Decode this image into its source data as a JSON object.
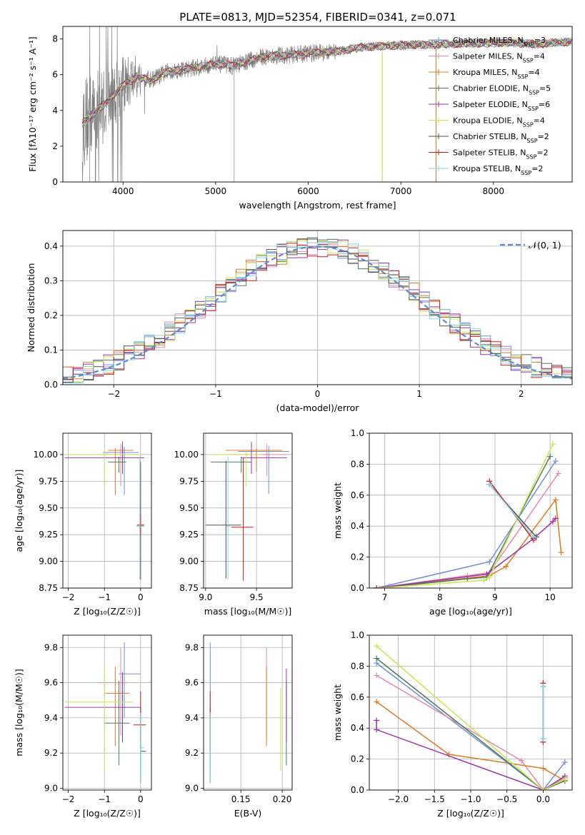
{
  "figure_title": "PLATE=0813, MJD=52354, FIBERID=0341, z=0.071",
  "colors": {
    "Chabrier MILES": "#6f8fdc",
    "Salpeter MILES": "#e088b8",
    "Kroupa MILES": "#e07a20",
    "Chabrier ELODIE": "#4f7a5a",
    "Salpeter ELODIE": "#9a35a8",
    "Kroupa ELODIE": "#c8e650",
    "Chabrier STELIB": "#505050",
    "Salpeter STELIB": "#c81e1e",
    "Kroupa STELIB": "#80d8e0",
    "data": "#808080",
    "gauss": "#5b8ad6"
  },
  "chart_data": [
    {
      "id": "spectrum",
      "type": "line",
      "title": "PLATE=0813, MJD=52354, FIBERID=0341, z=0.071",
      "xlabel": "wavelength [Angstrom, rest frame]",
      "ylabel": "Flux [fλ10⁻¹⁷ erg cm⁻² s⁻¹ A⁻¹]",
      "xlim": [
        3350,
        8850
      ],
      "ylim": [
        0,
        8.7
      ],
      "xticks": [
        4000,
        5000,
        6000,
        7000,
        8000
      ],
      "yticks": [
        0,
        2,
        4,
        6,
        8
      ],
      "legend_position": "right",
      "legend": [
        "Chabrier MILES, N_SSP=3",
        "Salpeter MILES, N_SSP=4",
        "Kroupa MILES, N_SSP=4",
        "Chabrier ELODIE, N_SSP=5",
        "Salpeter ELODIE, N_SSP=6",
        "Kroupa ELODIE, N_SSP=4",
        "Chabrier STELIB, N_SSP=2",
        "Salpeter STELIB, N_SSP=2",
        "Kroupa STELIB, N_SSP=2"
      ],
      "continuum": [
        [
          3560,
          3.3
        ],
        [
          3700,
          3.9
        ],
        [
          3850,
          4.6
        ],
        [
          4000,
          5.4
        ],
        [
          4150,
          5.9
        ],
        [
          4300,
          5.7
        ],
        [
          4500,
          6.2
        ],
        [
          4800,
          6.4
        ],
        [
          5000,
          6.6
        ],
        [
          5200,
          6.5
        ],
        [
          5500,
          7.0
        ],
        [
          5800,
          7.1
        ],
        [
          6000,
          7.2
        ],
        [
          6300,
          7.3
        ],
        [
          6600,
          7.55
        ],
        [
          7000,
          7.65
        ],
        [
          7400,
          7.7
        ],
        [
          7800,
          7.75
        ],
        [
          8200,
          7.8
        ],
        [
          8500,
          7.7
        ],
        [
          8850,
          7.85
        ]
      ]
    },
    {
      "id": "residuals",
      "type": "bar",
      "xlabel": "(data-model)/error",
      "ylabel": "Normed distribution",
      "xlim": [
        -2.5,
        2.5
      ],
      "ylim": [
        0,
        0.445
      ],
      "xticks": [
        -2,
        -1,
        0,
        1,
        2
      ],
      "yticks": [
        0.0,
        0.1,
        0.2,
        0.3,
        0.4
      ],
      "legend": [
        "𝒩(0, 1)"
      ],
      "legend_position": "top-right",
      "grid": true
    },
    {
      "id": "age-Z",
      "type": "scatter",
      "xlabel": "Z [log₁₀(Z/Z☉)]",
      "ylabel": "age  [log₁₀(age/yr)]",
      "xlim": [
        -2.15,
        0.3
      ],
      "ylim": [
        8.75,
        10.2
      ],
      "xticks": [
        -2,
        -1,
        0
      ],
      "yticks": [
        8.75,
        9.0,
        9.25,
        9.5,
        9.75,
        10.0
      ],
      "grid": true,
      "points": [
        {
          "model": "Chabrier MILES",
          "x": -0.45,
          "y": 10.02,
          "xerr": [
            0.6,
            0.4
          ],
          "yerr": [
            0.4,
            0.05
          ]
        },
        {
          "model": "Salpeter MILES",
          "x": -0.55,
          "y": 10.0,
          "xerr": [
            0.55,
            0.5
          ],
          "yerr": [
            0.3,
            0.1
          ]
        },
        {
          "model": "Kroupa MILES",
          "x": -0.7,
          "y": 10.04,
          "xerr": [
            0.2,
            0.5
          ],
          "yerr": [
            0.42,
            0.02
          ]
        },
        {
          "model": "Chabrier ELODIE",
          "x": -0.6,
          "y": 9.93,
          "xerr": [
            0.3,
            0.2
          ],
          "yerr": [
            0.1,
            0.05
          ]
        },
        {
          "model": "Salpeter ELODIE",
          "x": -0.5,
          "y": 9.97,
          "xerr": [
            1.6,
            0.6
          ],
          "yerr": [
            0.15,
            0.15
          ]
        },
        {
          "model": "Kroupa ELODIE",
          "x": -1.0,
          "y": 10.0,
          "xerr": [
            1.1,
            1.0
          ],
          "yerr": [
            0.3,
            0.05
          ]
        },
        {
          "model": "Chabrier STELIB",
          "x": 0.0,
          "y": 9.33,
          "xerr": [
            0.1,
            0.1
          ],
          "yerr": [
            0.5,
            0.6
          ]
        },
        {
          "model": "Salpeter STELIB",
          "x": 0.0,
          "y": 9.34,
          "xerr": [
            0.1,
            0.1
          ],
          "yerr": [
            0.1,
            0.1
          ]
        },
        {
          "model": "Kroupa STELIB",
          "x": -0.02,
          "y": 9.33,
          "xerr": [
            0.1,
            0.12
          ],
          "yerr": [
            0.5,
            0.65
          ]
        }
      ]
    },
    {
      "id": "age-mass",
      "type": "scatter",
      "xlabel": "mass [log₁₀(M/M☉)]",
      "xlim": [
        8.98,
        9.85
      ],
      "ylim": [
        8.75,
        10.2
      ],
      "xticks": [
        9.0,
        9.5
      ],
      "yticks": [
        8.75,
        9.0,
        9.25,
        9.5,
        9.75,
        10.0
      ],
      "grid": true,
      "points": [
        {
          "model": "Chabrier MILES",
          "x": 9.62,
          "y": 10.03,
          "xerr": [
            0.3,
            0.2
          ],
          "yerr": [
            0.4,
            0.05
          ]
        },
        {
          "model": "Salpeter MILES",
          "x": 9.6,
          "y": 10.0,
          "xerr": [
            0.4,
            0.2
          ],
          "yerr": [
            0.2,
            0.1
          ]
        },
        {
          "model": "Kroupa MILES",
          "x": 9.5,
          "y": 10.04,
          "xerr": [
            0.3,
            0.25
          ],
          "yerr": [
            0.2,
            0.02
          ]
        },
        {
          "model": "Chabrier ELODIE",
          "x": 9.35,
          "y": 9.93,
          "xerr": [
            0.3,
            0.1
          ],
          "yerr": [
            0.1,
            0.05
          ]
        },
        {
          "model": "Salpeter ELODIE",
          "x": 9.45,
          "y": 9.97,
          "xerr": [
            0.1,
            0.35
          ],
          "yerr": [
            0.15,
            0.15
          ]
        },
        {
          "model": "Kroupa ELODIE",
          "x": 9.4,
          "y": 10.0,
          "xerr": [
            0.35,
            0.15
          ],
          "yerr": [
            0.3,
            0.05
          ]
        },
        {
          "model": "Chabrier STELIB",
          "x": 9.2,
          "y": 9.34,
          "xerr": [
            0.2,
            0.15
          ],
          "yerr": [
            0.5,
            0.6
          ]
        },
        {
          "model": "Salpeter STELIB",
          "x": 9.37,
          "y": 9.32,
          "xerr": [
            0.12,
            0.1
          ],
          "yerr": [
            0.5,
            0.65
          ]
        },
        {
          "model": "Kroupa STELIB",
          "x": 9.22,
          "y": 9.33,
          "xerr": [
            0.02,
            0.02
          ],
          "yerr": [
            0.5,
            0.65
          ]
        }
      ]
    },
    {
      "id": "massweight-age",
      "type": "line",
      "xlabel": "age  [log₁₀(age/yr)]",
      "ylabel": "mass weight",
      "xlim": [
        6.72,
        10.4
      ],
      "ylim": [
        0,
        1.0
      ],
      "xticks": [
        7,
        8,
        9,
        10
      ],
      "yticks": [
        0.0,
        0.2,
        0.4,
        0.6,
        0.8,
        1.0
      ],
      "grid": true,
      "series": [
        {
          "model": "Chabrier MILES",
          "points": [
            [
              6.85,
              0.0
            ],
            [
              8.9,
              0.17
            ],
            [
              10.1,
              0.82
            ]
          ]
        },
        {
          "model": "Salpeter MILES",
          "points": [
            [
              6.85,
              0.0
            ],
            [
              8.5,
              0.08
            ],
            [
              8.9,
              0.1
            ],
            [
              10.15,
              0.74
            ]
          ]
        },
        {
          "model": "Kroupa MILES",
          "points": [
            [
              6.85,
              0.0
            ],
            [
              8.9,
              0.08
            ],
            [
              9.2,
              0.14
            ],
            [
              10.1,
              0.57
            ],
            [
              10.2,
              0.23
            ]
          ]
        },
        {
          "model": "Chabrier ELODIE",
          "points": [
            [
              6.9,
              0.0
            ],
            [
              8.5,
              0.06
            ],
            [
              8.85,
              0.07
            ],
            [
              10.0,
              0.85
            ]
          ]
        },
        {
          "model": "Salpeter ELODIE",
          "points": [
            [
              6.85,
              0.0
            ],
            [
              8.85,
              0.09
            ],
            [
              9.7,
              0.32
            ],
            [
              10.05,
              0.43
            ],
            [
              10.1,
              0.45
            ]
          ]
        },
        {
          "model": "Kroupa ELODIE",
          "points": [
            [
              6.9,
              0.0
            ],
            [
              8.8,
              0.05
            ],
            [
              8.9,
              0.07
            ],
            [
              10.05,
              0.93
            ]
          ]
        },
        {
          "model": "Chabrier STELIB",
          "points": [
            [
              8.9,
              0.67
            ],
            [
              9.75,
              0.33
            ]
          ]
        },
        {
          "model": "Salpeter STELIB",
          "points": [
            [
              8.9,
              0.69
            ],
            [
              9.7,
              0.31
            ]
          ]
        },
        {
          "model": "Kroupa STELIB",
          "points": [
            [
              8.9,
              0.67
            ],
            [
              9.7,
              0.33
            ]
          ]
        }
      ]
    },
    {
      "id": "mass-Z",
      "type": "scatter",
      "xlabel": "Z [log₁₀(Z/Z☉)]",
      "ylabel": "mass [log₁₀(M/M☉)]",
      "xlim": [
        -2.15,
        0.3
      ],
      "ylim": [
        8.99,
        9.87
      ],
      "xticks": [
        -2,
        -1,
        0
      ],
      "yticks": [
        9.0,
        9.2,
        9.4,
        9.6,
        9.8
      ],
      "grid": true,
      "points": [
        {
          "model": "Chabrier MILES",
          "x": -0.45,
          "y": 9.65,
          "xerr": [
            0.15,
            0.45
          ],
          "yerr": [
            0.25,
            0.18
          ]
        },
        {
          "model": "Salpeter MILES",
          "x": -0.55,
          "y": 9.6,
          "xerr": [
            0.6,
            0.2
          ],
          "yerr": [
            0.3,
            0.2
          ]
        },
        {
          "model": "Kroupa MILES",
          "x": -0.7,
          "y": 9.54,
          "xerr": [
            0.3,
            0.4
          ],
          "yerr": [
            0.3,
            0.15
          ]
        },
        {
          "model": "Chabrier ELODIE",
          "x": -0.6,
          "y": 9.37,
          "xerr": [
            0.4,
            0.3
          ],
          "yerr": [
            0.24,
            0.24
          ]
        },
        {
          "model": "Salpeter ELODIE",
          "x": -0.5,
          "y": 9.46,
          "xerr": [
            1.6,
            0.5
          ],
          "yerr": [
            0.2,
            0.2
          ]
        },
        {
          "model": "Kroupa ELODIE",
          "x": -1.0,
          "y": 9.49,
          "xerr": [
            1.1,
            0.8
          ],
          "yerr": [
            0.39,
            0.2
          ]
        },
        {
          "model": "Chabrier STELIB",
          "x": 0.0,
          "y": 9.21,
          "xerr": [
            0.0,
            0.15
          ],
          "yerr": [
            0.18,
            0.25
          ]
        },
        {
          "model": "Salpeter STELIB",
          "x": 0.0,
          "y": 9.36,
          "xerr": [
            0.2,
            0.15
          ],
          "yerr": [
            0.14,
            0.19
          ]
        },
        {
          "model": "Kroupa STELIB",
          "x": 0.0,
          "y": 9.23,
          "xerr": [
            0.02,
            0.1
          ],
          "yerr": [
            0.2,
            0.2
          ]
        }
      ]
    },
    {
      "id": "mass-EBV",
      "type": "scatter",
      "xlabel": "E(B-V)",
      "xlim": [
        0.105,
        0.212
      ],
      "ylim": [
        8.99,
        9.87
      ],
      "xticks": [
        0.15,
        0.2
      ],
      "yticks": [
        9.0,
        9.2,
        9.4,
        9.6,
        9.8
      ],
      "grid": true,
      "points": [
        {
          "model": "Chabrier MILES",
          "x": 0.113,
          "y": 9.65,
          "yerr": [
            0.25,
            0.18
          ]
        },
        {
          "model": "Salpeter MILES",
          "x": 0.181,
          "y": 9.6,
          "yerr": [
            0.3,
            0.2
          ]
        },
        {
          "model": "Kroupa MILES",
          "x": 0.181,
          "y": 9.54,
          "yerr": [
            0.3,
            0.15
          ]
        },
        {
          "model": "Chabrier ELODIE",
          "x": 0.205,
          "y": 9.37,
          "yerr": [
            0.24,
            0.24
          ]
        },
        {
          "model": "Salpeter ELODIE",
          "x": 0.205,
          "y": 9.46,
          "yerr": [
            0.2,
            0.22
          ]
        },
        {
          "model": "Kroupa ELODIE",
          "x": 0.198,
          "y": 9.49,
          "yerr": [
            0.39,
            0.08
          ]
        },
        {
          "model": "Chabrier STELIB",
          "x": 0.113,
          "y": 9.21,
          "yerr": [
            0.18,
            0.25
          ]
        },
        {
          "model": "Salpeter STELIB",
          "x": 0.113,
          "y": 9.36,
          "yerr": [
            0.14,
            0.19
          ]
        },
        {
          "model": "Kroupa STELIB",
          "x": 0.113,
          "y": 9.23,
          "yerr": [
            0.2,
            0.2
          ]
        }
      ]
    },
    {
      "id": "massweight-Z",
      "type": "line",
      "xlabel": "Z [log₁₀(Z/Z☉)]",
      "ylabel": "mass weight",
      "xlim": [
        -2.4,
        0.4
      ],
      "ylim": [
        0,
        1.0
      ],
      "xticks": [
        -2.0,
        -1.5,
        -1.0,
        -0.5,
        0.0
      ],
      "yticks": [
        0.0,
        0.2,
        0.4,
        0.6,
        0.8,
        1.0
      ],
      "grid": true,
      "series": [
        {
          "model": "Chabrier MILES",
          "points": [
            [
              -2.3,
              0.82
            ],
            [
              0.0,
              0.0
            ],
            [
              0.3,
              0.18
            ]
          ]
        },
        {
          "model": "Salpeter MILES",
          "points": [
            [
              -2.3,
              0.74
            ],
            [
              -0.3,
              0.19
            ],
            [
              0.0,
              0.0
            ],
            [
              0.3,
              0.08
            ]
          ]
        },
        {
          "model": "Kroupa MILES",
          "points": [
            [
              -2.3,
              0.57
            ],
            [
              -1.3,
              0.23
            ],
            [
              0.0,
              0.14
            ],
            [
              0.3,
              0.06
            ]
          ]
        },
        {
          "model": "Chabrier ELODIE",
          "points": [
            [
              -2.3,
              0.85
            ],
            [
              0.0,
              0.0
            ],
            [
              0.3,
              0.06
            ]
          ]
        },
        {
          "model": "Salpeter ELODIE",
          "points": [
            [
              -2.3,
              0.45
            ],
            [
              -2.3,
              0.39
            ],
            [
              0.0,
              0.0
            ],
            [
              0.3,
              0.09
            ]
          ]
        },
        {
          "model": "Kroupa ELODIE",
          "points": [
            [
              -2.3,
              0.93
            ],
            [
              0.0,
              0.0
            ],
            [
              0.3,
              0.07
            ]
          ]
        },
        {
          "model": "Chabrier STELIB",
          "points": [
            [
              0.0,
              0.67
            ],
            [
              0.0,
              0.33
            ]
          ]
        },
        {
          "model": "Salpeter STELIB",
          "points": [
            [
              0.0,
              0.69
            ],
            [
              0.0,
              0.31
            ]
          ]
        },
        {
          "model": "Kroupa STELIB",
          "points": [
            [
              0.0,
              0.67
            ],
            [
              0.0,
              0.33
            ]
          ]
        }
      ]
    }
  ]
}
